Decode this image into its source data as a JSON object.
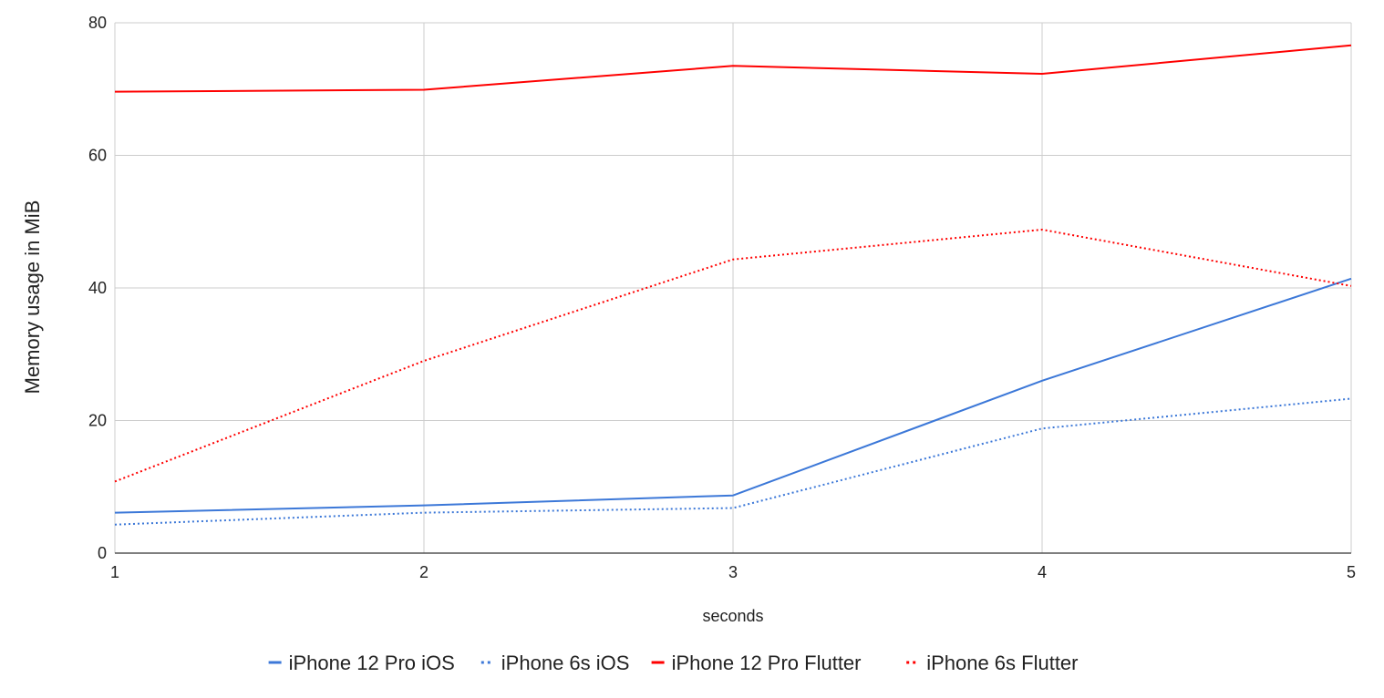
{
  "chart_data": {
    "type": "line",
    "title": "",
    "xlabel": "seconds",
    "ylabel": "Memory usage in MiB",
    "x": [
      1,
      2,
      3,
      4,
      5
    ],
    "x_ticks": [
      "1",
      "2",
      "3",
      "4",
      "5"
    ],
    "y_ticks": [
      "0",
      "20",
      "40",
      "60",
      "80"
    ],
    "xlim": [
      1,
      5
    ],
    "ylim": [
      0,
      80
    ],
    "grid": true,
    "legend_position": "bottom",
    "series": [
      {
        "name": "iPhone 12 Pro iOS",
        "values": [
          6.1,
          7.2,
          8.7,
          26.0,
          41.4
        ],
        "color": "#3c78d8",
        "style": "solid"
      },
      {
        "name": "iPhone 6s iOS",
        "values": [
          4.3,
          6.1,
          6.8,
          18.8,
          23.3
        ],
        "color": "#3c78d8",
        "style": "dotted"
      },
      {
        "name": "iPhone 12 Pro Flutter",
        "values": [
          69.6,
          69.9,
          73.5,
          72.3,
          76.6
        ],
        "color": "#ff0000",
        "style": "solid"
      },
      {
        "name": "iPhone 6s Flutter",
        "values": [
          10.8,
          29.0,
          44.3,
          48.8,
          40.3
        ],
        "color": "#ff0000",
        "style": "dotted"
      }
    ]
  }
}
